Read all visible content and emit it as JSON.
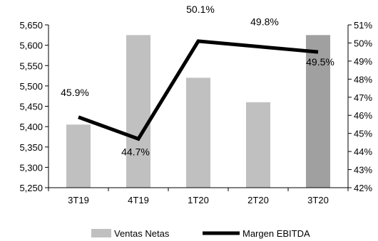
{
  "chart_data": {
    "type": "bar",
    "categories": [
      "3T19",
      "4T19",
      "1T20",
      "2T20",
      "3T20"
    ],
    "series": [
      {
        "name": "Ventas Netas",
        "kind": "bar",
        "axis": "left",
        "values": [
          5405,
          5625,
          5520,
          5460,
          5625
        ],
        "colors": [
          "#c0c0c0",
          "#c0c0c0",
          "#c0c0c0",
          "#c0c0c0",
          "#a0a0a0"
        ]
      },
      {
        "name": "Margen EBITDA",
        "kind": "line",
        "axis": "right",
        "values": [
          45.9,
          44.7,
          50.1,
          49.8,
          49.5
        ],
        "labels": [
          "45.9%",
          "44.7%",
          "50.1%",
          "49.8%",
          "49.5%"
        ],
        "color": "#000000"
      }
    ],
    "y_left": {
      "min": 5250,
      "max": 5650,
      "ticks": [
        5250,
        5300,
        5350,
        5400,
        5450,
        5500,
        5550,
        5600,
        5650
      ],
      "tick_labels": [
        "5,250",
        "5,300",
        "5,350",
        "5,400",
        "5,450",
        "5,500",
        "5,550",
        "5,600",
        "5,650"
      ]
    },
    "y_right": {
      "min": 42,
      "max": 51,
      "ticks": [
        42,
        43,
        44,
        45,
        46,
        47,
        48,
        49,
        50,
        51
      ],
      "tick_labels": [
        "42%",
        "43%",
        "44%",
        "45%",
        "46%",
        "47%",
        "48%",
        "49%",
        "50%",
        "51%"
      ]
    },
    "legend": [
      "Ventas Netas",
      "Margen EBITDA"
    ],
    "legend_position": "bottom",
    "grid": false
  }
}
